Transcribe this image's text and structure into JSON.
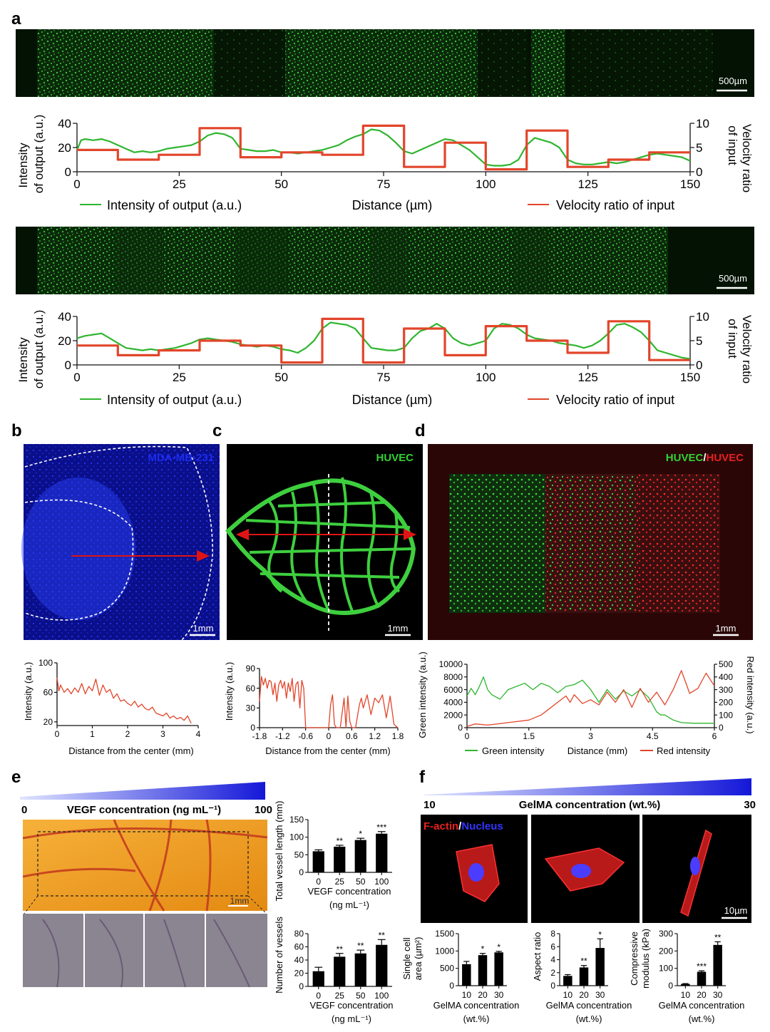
{
  "panels": {
    "a": {
      "letter": "a",
      "scalebar": "500µm",
      "charts": [
        {
          "ylabel_left_1": "Intensity",
          "ylabel_left_2": "of output (a.u.)",
          "ylabel_right_1": "Velocity ratio",
          "ylabel_right_2": "of input",
          "xlabel": "Distance (µm)",
          "legend_green": "Intensity of output (a.u.)",
          "legend_red": "Velocity ratio of input"
        },
        {
          "ylabel_left_1": "Intensity",
          "ylabel_left_2": "of output (a.u.)",
          "ylabel_right_1": "Velocity ratio",
          "ylabel_right_2": "of input",
          "xlabel": "Distance (µm)",
          "legend_green": "Intensity of output (a.u.)",
          "legend_red": "Velocity ratio of input"
        }
      ]
    },
    "b": {
      "letter": "b",
      "image_label": "MDA-MB-231",
      "scalebar": "1mm",
      "ylabel": "Intensity (a.u.)",
      "xlabel": "Distance from the center (mm)"
    },
    "c": {
      "letter": "c",
      "image_label": "HUVEC",
      "scalebar": "1mm",
      "ylabel": "Intensity (a.u.)",
      "xlabel": "Distance from the center (mm)"
    },
    "d": {
      "letter": "d",
      "image_label_green": "HUVEC",
      "image_label_sep": "/",
      "image_label_red": "HUVEC",
      "scalebar": "1mm",
      "ylabel_left": "Green intensity (a.u.)",
      "ylabel_right": "Red intensity (a.u.)",
      "legend_green": "Green intensity",
      "xlabel": "Distance (mm)",
      "legend_red": "Red intensity"
    },
    "e": {
      "letter": "e",
      "grad_start": "0",
      "grad_title": "VEGF concentration (ng mL⁻¹)",
      "grad_end": "100",
      "scalebar": "1mm",
      "chart1_ylabel_1": "Total vessel length (mm)",
      "chart1_xlabel_1": "VEGF concentration",
      "chart1_xlabel_2": "(ng mL⁻¹)",
      "chart2_ylabel": "Number of vessels",
      "chart2_xlabel_1": "VEGF concentration",
      "chart2_xlabel_2": "(ng mL⁻¹)"
    },
    "f": {
      "letter": "f",
      "grad_start": "10",
      "grad_title": "GelMA concentration (wt.%)",
      "grad_end": "30",
      "stain_red": "F-actin",
      "stain_sep": "/",
      "stain_blue": "Nucleus",
      "scalebar": "10µm",
      "chart1_ylabel_1": "Single cell",
      "chart1_ylabel_2": "area (µm²)",
      "chart2_ylabel": "Aspect ratio",
      "chart3_ylabel_1": "Compressive",
      "chart3_ylabel_2": "modulus (kPa)",
      "xlabel_1": "GelMA concentration",
      "xlabel_2": "(wt.%)"
    }
  },
  "chart_data": [
    {
      "id": "a1",
      "type": "line",
      "xlim": [
        0,
        150
      ],
      "ylim": [
        0,
        40
      ],
      "y2lim": [
        0,
        10
      ],
      "xticks": [
        0,
        25,
        50,
        75,
        100,
        125,
        150
      ],
      "yticks": [
        0,
        20,
        40
      ],
      "y2ticks": [
        0,
        5,
        10
      ],
      "series": [
        {
          "name": "Intensity of output (a.u.)",
          "color": "#2fb52f",
          "x": [
            0,
            1,
            2,
            4,
            6,
            8,
            10,
            12,
            14,
            16,
            18,
            20,
            22,
            24,
            26,
            28,
            30,
            32,
            34,
            36,
            38,
            40,
            42,
            44,
            46,
            48,
            50,
            52,
            54,
            56,
            58,
            60,
            62,
            64,
            66,
            68,
            70,
            72,
            74,
            76,
            78,
            80,
            82,
            84,
            86,
            88,
            90,
            92,
            94,
            96,
            98,
            100,
            102,
            104,
            106,
            108,
            110,
            112,
            114,
            116,
            118,
            120,
            122,
            124,
            126,
            128,
            130,
            132,
            134,
            136,
            138,
            140,
            142,
            144,
            146,
            148,
            150
          ],
          "y": [
            18,
            26,
            27,
            26,
            27,
            25,
            22,
            19,
            16,
            17,
            16,
            17,
            19,
            20,
            21,
            22,
            25,
            30,
            32,
            31,
            28,
            19,
            18,
            17,
            17,
            18,
            16,
            16,
            15,
            16,
            17,
            18,
            20,
            22,
            26,
            29,
            31,
            35,
            34,
            30,
            24,
            17,
            15,
            18,
            21,
            24,
            27,
            26,
            22,
            18,
            12,
            6,
            5,
            5,
            6,
            10,
            22,
            28,
            26,
            24,
            20,
            10,
            7,
            6,
            6,
            7,
            8,
            7,
            8,
            10,
            12,
            14,
            15,
            14,
            13,
            12,
            9
          ]
        },
        {
          "name": "Velocity ratio of input",
          "color": "#e2452a",
          "axis": "right",
          "step": true,
          "x": [
            0,
            10,
            20,
            30,
            40,
            50,
            60,
            70,
            80,
            90,
            100,
            110,
            120,
            130,
            140,
            150
          ],
          "y": [
            4.5,
            2.5,
            3.5,
            9.0,
            3.0,
            4.0,
            3.5,
            9.5,
            1.0,
            6.0,
            0.5,
            8.5,
            1.0,
            2.5,
            4.0,
            4.0
          ]
        }
      ]
    },
    {
      "id": "a2",
      "type": "line",
      "xlim": [
        0,
        150
      ],
      "ylim": [
        0,
        40
      ],
      "y2lim": [
        0,
        10
      ],
      "xticks": [
        0,
        25,
        50,
        75,
        100,
        125,
        150
      ],
      "yticks": [
        0,
        20,
        40
      ],
      "y2ticks": [
        0,
        5,
        10
      ],
      "series": [
        {
          "name": "Intensity of output (a.u.)",
          "color": "#2fb52f",
          "x": [
            0,
            2,
            4,
            6,
            8,
            10,
            12,
            14,
            16,
            18,
            20,
            22,
            24,
            26,
            28,
            30,
            32,
            34,
            36,
            38,
            40,
            42,
            44,
            46,
            48,
            50,
            52,
            54,
            56,
            58,
            60,
            62,
            64,
            66,
            68,
            70,
            72,
            74,
            76,
            78,
            80,
            82,
            84,
            86,
            88,
            90,
            92,
            94,
            96,
            98,
            100,
            102,
            104,
            106,
            108,
            110,
            112,
            114,
            116,
            118,
            120,
            122,
            124,
            126,
            128,
            130,
            132,
            134,
            136,
            138,
            140,
            142,
            144,
            146,
            148,
            150
          ],
          "y": [
            22,
            24,
            25,
            26,
            22,
            18,
            14,
            13,
            12,
            13,
            12,
            13,
            14,
            16,
            18,
            21,
            22,
            21,
            20,
            19,
            17,
            16,
            15,
            16,
            15,
            13,
            12,
            10,
            14,
            20,
            30,
            35,
            34,
            33,
            30,
            22,
            14,
            13,
            12,
            12,
            14,
            22,
            28,
            30,
            34,
            30,
            22,
            18,
            16,
            18,
            20,
            30,
            34,
            33,
            30,
            25,
            22,
            21,
            20,
            18,
            17,
            16,
            14,
            16,
            20,
            26,
            33,
            34,
            31,
            27,
            20,
            12,
            10,
            8,
            6,
            5
          ]
        },
        {
          "name": "Velocity ratio of input",
          "color": "#e2452a",
          "axis": "right",
          "step": true,
          "x": [
            0,
            10,
            20,
            30,
            40,
            50,
            60,
            70,
            80,
            90,
            100,
            110,
            120,
            130,
            140,
            150
          ],
          "y": [
            4.0,
            2.0,
            3.0,
            5.0,
            4.0,
            0.5,
            9.5,
            0.5,
            7.5,
            2.0,
            8.0,
            5.0,
            2.5,
            9.0,
            1.0,
            1.0
          ]
        }
      ]
    },
    {
      "id": "b",
      "type": "line",
      "xlim": [
        0,
        4
      ],
      "ylim": [
        15,
        100
      ],
      "xticks": [
        0,
        1,
        2,
        3,
        4
      ],
      "yticks": [
        20,
        60,
        100
      ],
      "series": [
        {
          "color": "#e2452a",
          "x": [
            0,
            0.05,
            0.1,
            0.2,
            0.3,
            0.4,
            0.5,
            0.6,
            0.7,
            0.8,
            0.9,
            1.0,
            1.1,
            1.2,
            1.3,
            1.4,
            1.5,
            1.6,
            1.7,
            1.8,
            1.9,
            2.0,
            2.1,
            2.2,
            2.3,
            2.4,
            2.5,
            2.6,
            2.7,
            2.8,
            2.9,
            3.0,
            3.1,
            3.2,
            3.3,
            3.4,
            3.5,
            3.6,
            3.7,
            3.8
          ],
          "y": [
            80,
            62,
            70,
            60,
            65,
            58,
            66,
            60,
            72,
            58,
            68,
            62,
            78,
            56,
            70,
            60,
            64,
            52,
            58,
            48,
            50,
            45,
            42,
            48,
            40,
            44,
            38,
            36,
            40,
            32,
            30,
            28,
            32,
            25,
            28,
            24,
            26,
            22,
            28,
            18
          ]
        }
      ]
    },
    {
      "id": "c",
      "type": "line",
      "xlim": [
        -1.8,
        1.8
      ],
      "ylim": [
        0,
        90
      ],
      "xticks": [
        -1.8,
        -1.2,
        -0.6,
        0.0,
        0.6,
        1.2,
        1.8
      ],
      "yticks": [
        0,
        30,
        60,
        90
      ],
      "series": [
        {
          "color": "#e2452a",
          "x": [
            -1.8,
            -1.75,
            -1.7,
            -1.65,
            -1.6,
            -1.55,
            -1.5,
            -1.45,
            -1.4,
            -1.35,
            -1.3,
            -1.25,
            -1.2,
            -1.15,
            -1.1,
            -1.05,
            -1.0,
            -0.95,
            -0.9,
            -0.85,
            -0.8,
            -0.75,
            -0.7,
            -0.65,
            -0.6,
            -0.5,
            -0.4,
            -0.3,
            -0.2,
            -0.1,
            0.0,
            0.05,
            0.1,
            0.15,
            0.2,
            0.3,
            0.4,
            0.45,
            0.5,
            0.55,
            0.6,
            0.7,
            0.8,
            0.85,
            0.9,
            1.0,
            1.1,
            1.2,
            1.3,
            1.4,
            1.5,
            1.6,
            1.7,
            1.8
          ],
          "y": [
            40,
            78,
            65,
            75,
            60,
            72,
            70,
            50,
            68,
            40,
            65,
            72,
            60,
            70,
            45,
            68,
            55,
            75,
            40,
            66,
            70,
            30,
            72,
            60,
            0,
            0,
            0,
            0,
            0,
            0,
            0,
            35,
            50,
            5,
            0,
            0,
            45,
            0,
            48,
            10,
            0,
            0,
            35,
            45,
            30,
            50,
            20,
            45,
            38,
            50,
            15,
            48,
            5,
            0
          ]
        }
      ]
    },
    {
      "id": "d",
      "type": "line",
      "xlim": [
        0,
        6
      ],
      "ylim": [
        0,
        10000
      ],
      "y2lim": [
        0,
        500
      ],
      "xticks": [
        0.0,
        1.5,
        3.0,
        4.5,
        6.0
      ],
      "yticks": [
        0,
        2000,
        4000,
        6000,
        8000,
        10000
      ],
      "y2ticks": [
        0,
        100,
        200,
        300,
        400,
        500
      ],
      "series": [
        {
          "name": "Green intensity",
          "color": "#2fb52f",
          "x": [
            0,
            0.1,
            0.2,
            0.3,
            0.4,
            0.5,
            0.6,
            0.8,
            1.0,
            1.2,
            1.4,
            1.6,
            1.8,
            2.0,
            2.2,
            2.4,
            2.6,
            2.8,
            3.0,
            3.2,
            3.4,
            3.6,
            3.8,
            4.0,
            4.2,
            4.4,
            4.6,
            4.7,
            4.8,
            5.0,
            5.2,
            5.5,
            6.0
          ],
          "y": [
            5000,
            6200,
            5200,
            6500,
            8000,
            6000,
            5200,
            4500,
            6000,
            6500,
            7000,
            6000,
            7000,
            6500,
            5500,
            6500,
            6800,
            7500,
            6000,
            4000,
            6000,
            4500,
            5800,
            5000,
            6000,
            4800,
            2500,
            2000,
            2000,
            1200,
            800,
            700,
            700
          ]
        },
        {
          "name": "Red intensity",
          "color": "#e2452a",
          "axis": "right",
          "x": [
            0,
            0.2,
            0.5,
            1.0,
            1.5,
            1.8,
            2.0,
            2.2,
            2.4,
            2.5,
            2.6,
            2.8,
            3.0,
            3.2,
            3.4,
            3.6,
            3.8,
            4.0,
            4.2,
            4.4,
            4.6,
            4.8,
            5.0,
            5.2,
            5.4,
            5.6,
            5.8,
            6.0
          ],
          "y": [
            10,
            30,
            20,
            40,
            60,
            100,
            150,
            200,
            250,
            200,
            260,
            190,
            220,
            180,
            280,
            200,
            300,
            160,
            310,
            200,
            280,
            180,
            300,
            450,
            270,
            310,
            430,
            330
          ]
        }
      ]
    },
    {
      "id": "e1",
      "type": "bar",
      "categories": [
        "0",
        "25",
        "50",
        "100"
      ],
      "values": [
        60,
        73,
        92,
        110
      ],
      "errors": [
        4,
        4,
        5,
        6
      ],
      "significance": [
        "",
        "**",
        "*",
        "***"
      ],
      "ylim": [
        0,
        150
      ],
      "yticks": [
        0,
        50,
        100,
        150
      ]
    },
    {
      "id": "e2",
      "type": "bar",
      "categories": [
        "0",
        "25",
        "50",
        "100"
      ],
      "values": [
        23,
        45,
        50,
        63
      ],
      "errors": [
        6,
        5,
        5,
        8
      ],
      "significance": [
        "",
        "**",
        "**",
        "**"
      ],
      "ylim": [
        0,
        80
      ],
      "yticks": [
        0,
        20,
        40,
        60,
        80
      ]
    },
    {
      "id": "f1",
      "type": "bar",
      "categories": [
        "10",
        "20",
        "30"
      ],
      "values": [
        620,
        880,
        960
      ],
      "errors": [
        80,
        50,
        30
      ],
      "significance": [
        "",
        "*",
        "*"
      ],
      "ylim": [
        0,
        1500
      ],
      "yticks": [
        0,
        500,
        1000,
        1500
      ]
    },
    {
      "id": "f2",
      "type": "bar",
      "categories": [
        "10",
        "20",
        "30"
      ],
      "values": [
        1.5,
        2.8,
        5.8
      ],
      "errors": [
        0.2,
        0.3,
        1.4
      ],
      "significance": [
        "",
        "**",
        "*"
      ],
      "ylim": [
        0,
        8
      ],
      "yticks": [
        0,
        2,
        4,
        6,
        8
      ]
    },
    {
      "id": "f3",
      "type": "bar",
      "categories": [
        "10",
        "20",
        "30"
      ],
      "values": [
        10,
        80,
        235
      ],
      "errors": [
        2,
        6,
        18
      ],
      "significance": [
        "",
        "***",
        "**"
      ],
      "ylim": [
        0,
        300
      ],
      "yticks": [
        0,
        100,
        200,
        300
      ]
    }
  ]
}
